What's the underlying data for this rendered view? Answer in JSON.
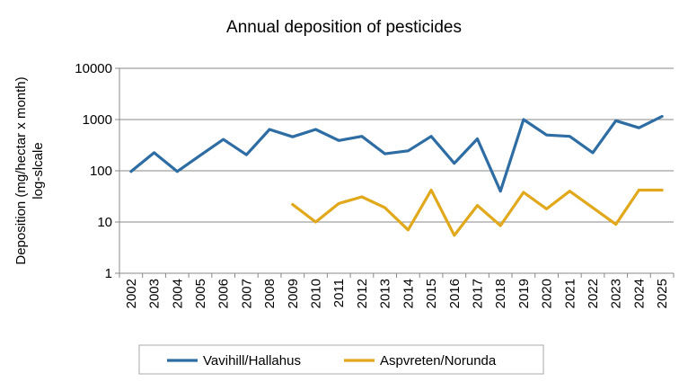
{
  "chart_data": {
    "type": "line",
    "title": "Annual  deposition of pesticides",
    "ylabel_line1": "Deposition  (mg/hectar x month)",
    "ylabel_line2": "log-slcale",
    "xlabel": "",
    "yscale": "log",
    "ylim": [
      1,
      10000
    ],
    "ytick_labels": [
      "10000",
      "1000",
      "100",
      "10",
      "1"
    ],
    "ytick_values": [
      10000,
      1000,
      100,
      10,
      1
    ],
    "grid": "horizontal",
    "legend_position": "bottom",
    "categories": [
      "2002",
      "2003",
      "2004",
      "2005",
      "2006",
      "2007",
      "2008",
      "2009",
      "2010",
      "2011",
      "2012",
      "2013",
      "2014",
      "2015",
      "2016",
      "2017",
      "2018",
      "2019",
      "2020",
      "2021",
      "2022",
      "2023",
      "2024",
      "2025"
    ],
    "series": [
      {
        "name": "Vavihill/Hallahus",
        "color": "#2e6da4",
        "values": [
          97,
          225,
          97,
          200,
          410,
          205,
          640,
          460,
          640,
          390,
          470,
          215,
          245,
          470,
          140,
          420,
          40,
          1000,
          500,
          470,
          225,
          950,
          690,
          1150
        ]
      },
      {
        "name": "Aspvreten/Norunda",
        "color": "#e0a81a",
        "values": [
          null,
          null,
          null,
          null,
          null,
          null,
          null,
          22,
          10,
          23,
          31,
          19,
          7,
          42,
          5.5,
          21,
          8.5,
          38,
          18,
          40,
          19,
          9,
          42,
          42
        ]
      }
    ]
  }
}
